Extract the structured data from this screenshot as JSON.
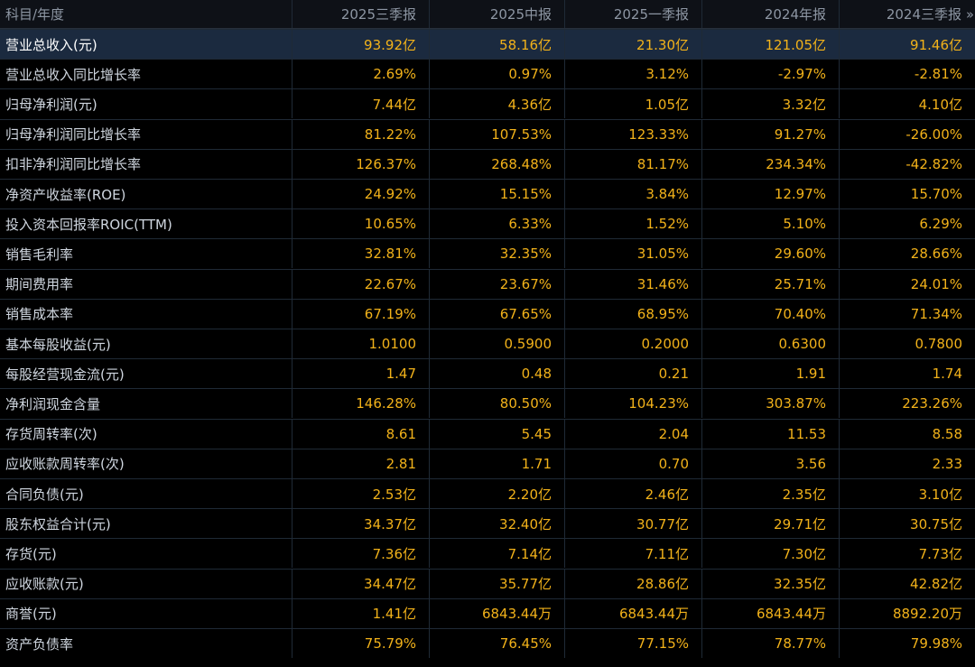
{
  "header": {
    "corner": "科目/年度",
    "periods": [
      "2025三季报",
      "2025中报",
      "2025一季报",
      "2024年报",
      "2024三季报"
    ],
    "more_icon": "double-chevron-right-icon"
  },
  "rows": [
    {
      "label": "营业总收入(元)",
      "values": [
        "93.92亿",
        "58.16亿",
        "21.30亿",
        "121.05亿",
        "91.46亿"
      ]
    },
    {
      "label": "营业总收入同比增长率",
      "values": [
        "2.69%",
        "0.97%",
        "3.12%",
        "-2.97%",
        "-2.81%"
      ]
    },
    {
      "label": "归母净利润(元)",
      "values": [
        "7.44亿",
        "4.36亿",
        "1.05亿",
        "3.32亿",
        "4.10亿"
      ]
    },
    {
      "label": "归母净利润同比增长率",
      "values": [
        "81.22%",
        "107.53%",
        "123.33%",
        "91.27%",
        "-26.00%"
      ]
    },
    {
      "label": "扣非净利润同比增长率",
      "values": [
        "126.37%",
        "268.48%",
        "81.17%",
        "234.34%",
        "-42.82%"
      ]
    },
    {
      "label": "净资产收益率(ROE)",
      "values": [
        "24.92%",
        "15.15%",
        "3.84%",
        "12.97%",
        "15.70%"
      ]
    },
    {
      "label": "投入资本回报率ROIC(TTM)",
      "values": [
        "10.65%",
        "6.33%",
        "1.52%",
        "5.10%",
        "6.29%"
      ]
    },
    {
      "label": "销售毛利率",
      "values": [
        "32.81%",
        "32.35%",
        "31.05%",
        "29.60%",
        "28.66%"
      ]
    },
    {
      "label": "期间费用率",
      "values": [
        "22.67%",
        "23.67%",
        "31.46%",
        "25.71%",
        "24.01%"
      ]
    },
    {
      "label": "销售成本率",
      "values": [
        "67.19%",
        "67.65%",
        "68.95%",
        "70.40%",
        "71.34%"
      ]
    },
    {
      "label": "基本每股收益(元)",
      "values": [
        "1.0100",
        "0.5900",
        "0.2000",
        "0.6300",
        "0.7800"
      ]
    },
    {
      "label": "每股经营现金流(元)",
      "values": [
        "1.47",
        "0.48",
        "0.21",
        "1.91",
        "1.74"
      ]
    },
    {
      "label": "净利润现金含量",
      "values": [
        "146.28%",
        "80.50%",
        "104.23%",
        "303.87%",
        "223.26%"
      ]
    },
    {
      "label": "存货周转率(次)",
      "values": [
        "8.61",
        "5.45",
        "2.04",
        "11.53",
        "8.58"
      ]
    },
    {
      "label": "应收账款周转率(次)",
      "values": [
        "2.81",
        "1.71",
        "0.70",
        "3.56",
        "2.33"
      ]
    },
    {
      "label": "合同负债(元)",
      "values": [
        "2.53亿",
        "2.20亿",
        "2.46亿",
        "2.35亿",
        "3.10亿"
      ]
    },
    {
      "label": "股东权益合计(元)",
      "values": [
        "34.37亿",
        "32.40亿",
        "30.77亿",
        "29.71亿",
        "30.75亿"
      ]
    },
    {
      "label": "存货(元)",
      "values": [
        "7.36亿",
        "7.14亿",
        "7.11亿",
        "7.30亿",
        "7.73亿"
      ]
    },
    {
      "label": "应收账款(元)",
      "values": [
        "34.47亿",
        "35.77亿",
        "28.86亿",
        "32.35亿",
        "42.82亿"
      ]
    },
    {
      "label": "商誉(元)",
      "values": [
        "1.41亿",
        "6843.44万",
        "6843.44万",
        "6843.44万",
        "8892.20万"
      ]
    },
    {
      "label": "资产负债率",
      "values": [
        "75.79%",
        "76.45%",
        "77.15%",
        "78.77%",
        "79.98%"
      ]
    }
  ],
  "colors": {
    "background": "#000000",
    "value_text": "#f2b21a",
    "label_text": "#cfd6df",
    "header_text": "#8d96a3",
    "highlight_row": "#1b2a3f",
    "grid_line": "#1f2a36"
  }
}
